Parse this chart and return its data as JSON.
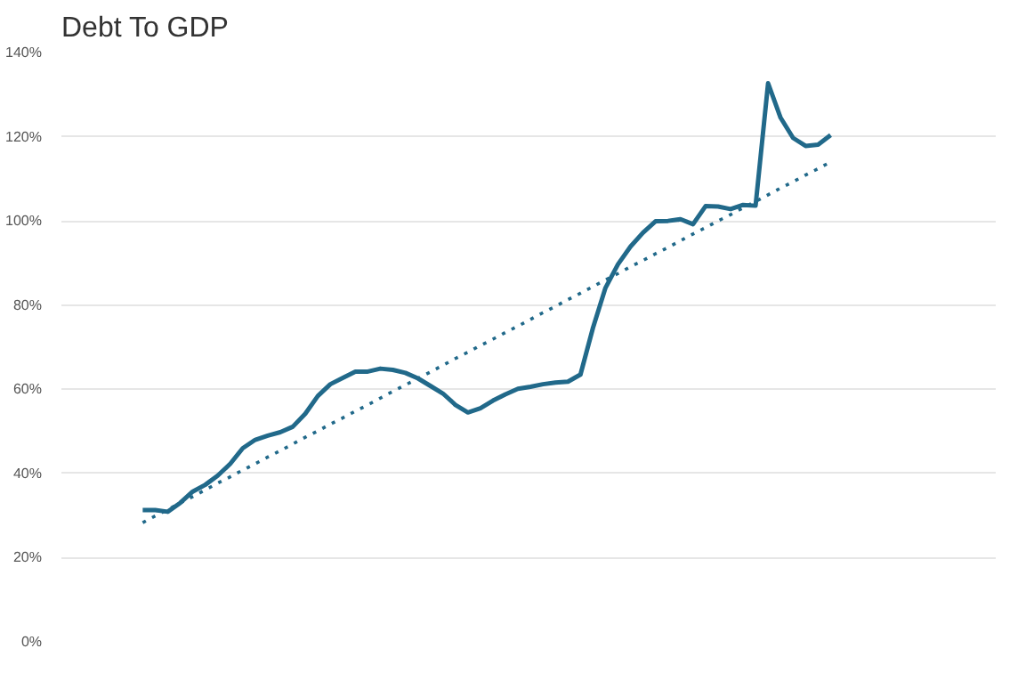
{
  "chart_data": {
    "type": "line",
    "title": "Debt To GDP",
    "ylim": [
      0,
      140
    ],
    "yticks": [
      {
        "value": 0,
        "label": "0%"
      },
      {
        "value": 20,
        "label": "20%"
      },
      {
        "value": 40,
        "label": "40%"
      },
      {
        "value": 60,
        "label": "60%"
      },
      {
        "value": 80,
        "label": "80%"
      },
      {
        "value": 100,
        "label": "100%"
      },
      {
        "value": 120,
        "label": "120%"
      },
      {
        "value": 140,
        "label": "140%"
      }
    ],
    "tick_labels": "y",
    "grid": "y",
    "categories": [
      null,
      null,
      null,
      null,
      null,
      null,
      null,
      null,
      null,
      null,
      null,
      null,
      null,
      null,
      null,
      null,
      null,
      null,
      null,
      null,
      null,
      null,
      null,
      null,
      null,
      null,
      null,
      null,
      null,
      null,
      null,
      null,
      null,
      null,
      null,
      null,
      null,
      null,
      null,
      null,
      null,
      null,
      null,
      null,
      null,
      null,
      null,
      null,
      null,
      null,
      null,
      null,
      null,
      null,
      null,
      null
    ],
    "series": [
      {
        "color": "#21698a",
        "line_style": "solid",
        "values": [
          31.3,
          31.3,
          30.9,
          33.0,
          35.7,
          37.3,
          39.5,
          42.3,
          46.0,
          48.0,
          49.0,
          49.8,
          51.1,
          54.2,
          58.4,
          61.2,
          62.7,
          64.2,
          64.2,
          64.9,
          64.6,
          63.9,
          62.6,
          60.8,
          59.0,
          56.3,
          54.5,
          55.5,
          57.3,
          58.8,
          60.1,
          60.6,
          61.2,
          61.6,
          61.8,
          63.5,
          74.6,
          84.1,
          89.7,
          93.9,
          97.2,
          99.9,
          100.0,
          100.4,
          99.2,
          103.5,
          103.4,
          102.8,
          103.8,
          103.6,
          132.7,
          124.5,
          119.7,
          117.8,
          118.1,
          120.4
        ]
      },
      {
        "color": "#21698a",
        "line_style": "dotted",
        "values": [
          28.3,
          29.9,
          31.4,
          33.0,
          34.5,
          36.1,
          37.7,
          39.2,
          40.8,
          42.3,
          43.9,
          45.4,
          47.0,
          48.6,
          50.1,
          51.7,
          53.2,
          54.8,
          56.3,
          57.9,
          59.5,
          61.0,
          62.6,
          64.1,
          65.7,
          67.3,
          68.8,
          70.4,
          71.9,
          73.5,
          75.0,
          76.6,
          78.2,
          79.7,
          81.3,
          82.8,
          84.4,
          86.0,
          87.5,
          89.1,
          90.6,
          92.2,
          93.7,
          95.3,
          96.9,
          98.4,
          100.0,
          101.5,
          103.1,
          104.6,
          106.2,
          107.8,
          109.3,
          110.9,
          112.4,
          114.0
        ]
      }
    ]
  }
}
